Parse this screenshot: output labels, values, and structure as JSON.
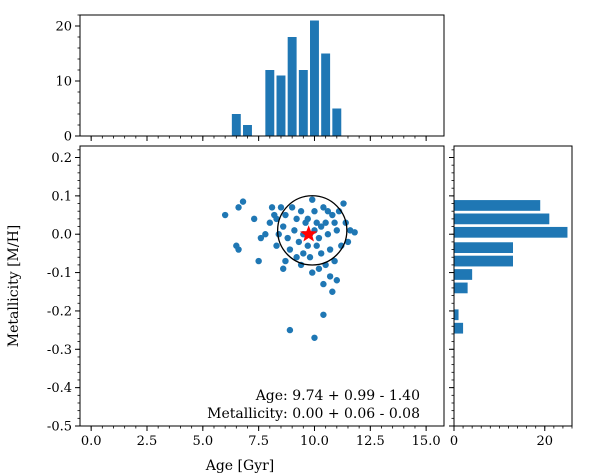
{
  "chart_data": {
    "type": "scatter",
    "xlabel": "Age [Gyr]",
    "ylabel": "Metallicity [M/H]",
    "xlim": [
      -0.5,
      15.8
    ],
    "ylim": [
      -0.5,
      0.23
    ],
    "xticks": [
      0.0,
      2.5,
      5.0,
      7.5,
      10.0,
      12.5,
      15.0
    ],
    "yticks": [
      -0.5,
      -0.4,
      -0.3,
      -0.2,
      -0.1,
      0.0,
      0.1,
      0.2
    ],
    "point_color": "#1f77b4",
    "points": [
      [
        6.0,
        0.05
      ],
      [
        6.6,
        0.07
      ],
      [
        6.8,
        0.085
      ],
      [
        6.5,
        -0.03
      ],
      [
        6.6,
        -0.04
      ],
      [
        7.3,
        0.04
      ],
      [
        7.6,
        -0.01
      ],
      [
        7.5,
        -0.07
      ],
      [
        8.1,
        0.07
      ],
      [
        8.2,
        0.05
      ],
      [
        8.0,
        0.03
      ],
      [
        7.8,
        0.0
      ],
      [
        8.4,
        0.0
      ],
      [
        8.3,
        -0.03
      ],
      [
        8.5,
        0.07
      ],
      [
        8.7,
        0.05
      ],
      [
        8.6,
        0.02
      ],
      [
        8.8,
        -0.01
      ],
      [
        8.9,
        -0.04
      ],
      [
        8.7,
        -0.07
      ],
      [
        9.0,
        0.07
      ],
      [
        9.2,
        0.04
      ],
      [
        9.1,
        0.01
      ],
      [
        9.3,
        -0.02
      ],
      [
        9.5,
        -0.05
      ],
      [
        9.4,
        0.06
      ],
      [
        9.6,
        0.03
      ],
      [
        9.8,
        0.0
      ],
      [
        9.7,
        -0.03
      ],
      [
        9.9,
        0.09
      ],
      [
        10.0,
        0.06
      ],
      [
        10.1,
        0.03
      ],
      [
        10.2,
        -0.01
      ],
      [
        10.3,
        -0.05
      ],
      [
        10.4,
        0.07
      ],
      [
        10.5,
        0.03
      ],
      [
        10.6,
        0.0
      ],
      [
        10.7,
        -0.04
      ],
      [
        10.5,
        -0.08
      ],
      [
        10.8,
        0.05
      ],
      [
        11.0,
        0.01
      ],
      [
        11.2,
        -0.03
      ],
      [
        11.1,
        0.06
      ],
      [
        11.4,
        0.03
      ],
      [
        11.6,
        0.01
      ],
      [
        11.8,
        0.005
      ],
      [
        10.9,
        -0.07
      ],
      [
        11.0,
        -0.12
      ],
      [
        10.7,
        -0.11
      ],
      [
        10.4,
        -0.13
      ],
      [
        10.8,
        -0.15
      ],
      [
        10.4,
        -0.21
      ],
      [
        8.9,
        -0.25
      ],
      [
        10.0,
        -0.27
      ],
      [
        9.4,
        -0.08
      ],
      [
        9.9,
        -0.1
      ],
      [
        10.2,
        -0.09
      ],
      [
        10.9,
        0.03
      ],
      [
        9.7,
        0.04
      ],
      [
        10.3,
        0.02
      ],
      [
        9.2,
        -0.06
      ],
      [
        11.5,
        -0.02
      ],
      [
        10.6,
        0.06
      ],
      [
        9.8,
        -0.06
      ],
      [
        8.6,
        -0.09
      ],
      [
        10.1,
        -0.03
      ],
      [
        11.3,
        0.08
      ],
      [
        9.5,
        0.0
      ],
      [
        8.3,
        0.04
      ],
      [
        10.0,
        0.01
      ]
    ],
    "best_fit": {
      "age": 9.74,
      "metallicity": 0.0,
      "marker_color": "#ff0000"
    },
    "uncertainty_circle": {
      "center_age": 9.9,
      "center_metallicity": 0.01,
      "radius_age": 1.55
    },
    "age_histogram": {
      "ylim": [
        0,
        22
      ],
      "yticks": [
        0,
        10,
        20
      ],
      "bars": [
        {
          "x": 6.5,
          "count": 4
        },
        {
          "x": 7.0,
          "count": 2
        },
        {
          "x": 8.0,
          "count": 12
        },
        {
          "x": 8.5,
          "count": 11
        },
        {
          "x": 9.0,
          "count": 18
        },
        {
          "x": 9.5,
          "count": 12
        },
        {
          "x": 10.0,
          "count": 21
        },
        {
          "x": 10.5,
          "count": 15
        },
        {
          "x": 11.0,
          "count": 5
        }
      ]
    },
    "metallicity_histogram": {
      "xlim": [
        0,
        26
      ],
      "xticks": [
        0,
        20
      ],
      "bars": [
        {
          "y": 0.075,
          "count": 19
        },
        {
          "y": 0.04,
          "count": 21
        },
        {
          "y": 0.005,
          "count": 25
        },
        {
          "y": -0.035,
          "count": 13
        },
        {
          "y": -0.07,
          "count": 13
        },
        {
          "y": -0.105,
          "count": 4
        },
        {
          "y": -0.14,
          "count": 3
        },
        {
          "y": -0.21,
          "count": 1
        },
        {
          "y": -0.245,
          "count": 2
        }
      ]
    },
    "annotations": {
      "age_line": "Age: 9.74 + 0.99 - 1.40",
      "metallicity_line": "Metallicity: 0.00 + 0.06 - 0.08"
    }
  }
}
